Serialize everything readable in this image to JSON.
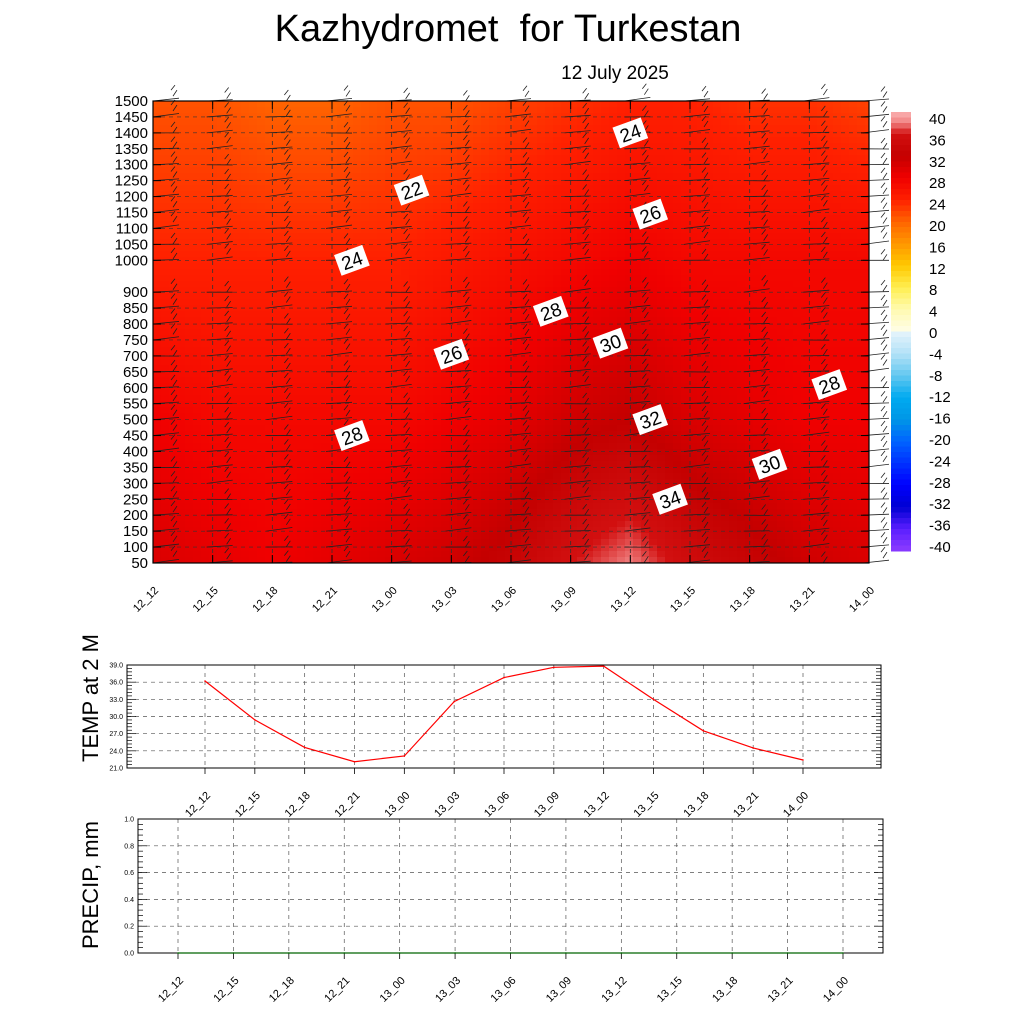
{
  "header": {
    "title": "Kazhydromet  for Turkestan",
    "subtitle": "12 July 2025"
  },
  "colors": {
    "temp_line": "#ff0000",
    "precip_line": "#006400",
    "grid": "#555555"
  },
  "colorbar": {
    "labels": [
      "40",
      "36",
      "32",
      "28",
      "24",
      "20",
      "16",
      "12",
      "8",
      "4",
      "0",
      "-4",
      "-8",
      "-12",
      "-16",
      "-20",
      "-24",
      "-28",
      "-32",
      "-36",
      "-40"
    ],
    "stops": [
      {
        "v": 40,
        "c": "#fbb3b3"
      },
      {
        "v": 38,
        "c": "#f08080"
      },
      {
        "v": 36,
        "c": "#d21010"
      },
      {
        "v": 32,
        "c": "#c40000"
      },
      {
        "v": 28,
        "c": "#f00000"
      },
      {
        "v": 24,
        "c": "#ff2000"
      },
      {
        "v": 20,
        "c": "#ff6400"
      },
      {
        "v": 16,
        "c": "#ff9600"
      },
      {
        "v": 12,
        "c": "#ffc800"
      },
      {
        "v": 8,
        "c": "#ffee50"
      },
      {
        "v": 4,
        "c": "#fffab0"
      },
      {
        "v": 0.01,
        "c": "#fffde8"
      },
      {
        "v": -0.01,
        "c": "#e6f4fc"
      },
      {
        "v": -4,
        "c": "#b4e2f7"
      },
      {
        "v": -8,
        "c": "#64c8f0"
      },
      {
        "v": -12,
        "c": "#00aaf0"
      },
      {
        "v": -16,
        "c": "#0096e6"
      },
      {
        "v": -20,
        "c": "#0064ff"
      },
      {
        "v": -24,
        "c": "#0032ff"
      },
      {
        "v": -28,
        "c": "#0000ff"
      },
      {
        "v": -32,
        "c": "#0000d2"
      },
      {
        "v": -36,
        "c": "#5a1eff"
      },
      {
        "v": -40,
        "c": "#8c3cff"
      }
    ]
  },
  "chart_data": [
    {
      "type": "heatmap",
      "title": "Kazhydromet  for Turkestan",
      "subtitle": "12 July 2025",
      "x": [
        "12_12",
        "12_15",
        "12_18",
        "12_21",
        "13_00",
        "13_03",
        "13_06",
        "13_09",
        "13_12",
        "13_15",
        "13_18",
        "13_21",
        "14_00"
      ],
      "y_ticks": [
        50,
        100,
        150,
        200,
        250,
        300,
        350,
        400,
        450,
        500,
        550,
        600,
        650,
        700,
        750,
        800,
        850,
        900,
        1000,
        1050,
        1100,
        1150,
        1200,
        1250,
        1300,
        1350,
        1400,
        1450,
        1500
      ],
      "levels": [
        50,
        500,
        1000,
        1500
      ],
      "values": [
        [
          30,
          29,
          28,
          29,
          30,
          31,
          33,
          36,
          38,
          35,
          33,
          31,
          30
        ],
        [
          28,
          27,
          27,
          27,
          27,
          28,
          29,
          31,
          32,
          30,
          29,
          28,
          28
        ],
        [
          24,
          24,
          24,
          24,
          24,
          25,
          26,
          27,
          28,
          27,
          27,
          27,
          27
        ],
        [
          21,
          21,
          20,
          20,
          21,
          21,
          22,
          23,
          24,
          24,
          23,
          23,
          22
        ]
      ],
      "contour_labels": [
        {
          "text": "24",
          "x": "13_12",
          "y": 1400
        },
        {
          "text": "22",
          "x": "13_01",
          "y": 1220
        },
        {
          "text": "26",
          "x": "13_13",
          "y": 1145
        },
        {
          "text": "24",
          "x": "12_22",
          "y": 1000
        },
        {
          "text": "28",
          "x": "13_08",
          "y": 840
        },
        {
          "text": "30",
          "x": "13_11",
          "y": 740
        },
        {
          "text": "26",
          "x": "13_03",
          "y": 705
        },
        {
          "text": "28",
          "x": "13_22",
          "y": 610
        },
        {
          "text": "32",
          "x": "13_13",
          "y": 500
        },
        {
          "text": "28",
          "x": "12_22",
          "y": 450
        },
        {
          "text": "30",
          "x": "13_19",
          "y": 360
        },
        {
          "text": "34",
          "x": "13_14",
          "y": 250
        }
      ],
      "colorbar_range": [
        -40,
        40
      ],
      "grid": true
    },
    {
      "type": "line",
      "ylabel": "TEMP at 2 M",
      "x": [
        "12_12",
        "12_15",
        "12_18",
        "12_21",
        "13_00",
        "13_03",
        "13_06",
        "13_09",
        "13_12",
        "13_15",
        "13_18",
        "13_21",
        "14_00"
      ],
      "y_ticks": [
        "21.0",
        "24.0",
        "27.0",
        "30.0",
        "33.0",
        "36.0",
        "39.0"
      ],
      "ylim": [
        21,
        39
      ],
      "series": [
        {
          "values": [
            36.2,
            29.4,
            24.6,
            22.1,
            23.1,
            32.6,
            36.8,
            38.6,
            38.8,
            33.0,
            27.5,
            24.5,
            22.4
          ]
        }
      ],
      "grid": true
    },
    {
      "type": "line",
      "ylabel": "PRECIP, mm",
      "x": [
        "12_12",
        "12_15",
        "12_18",
        "12_21",
        "13_00",
        "13_03",
        "13_06",
        "13_09",
        "13_12",
        "13_15",
        "13_18",
        "13_21",
        "14_00"
      ],
      "y_ticks": [
        "0.0",
        "0.2",
        "0.4",
        "0.6",
        "0.8",
        "1.0"
      ],
      "ylim": [
        0,
        1
      ],
      "series": [
        {
          "values": [
            0,
            0,
            0,
            0,
            0,
            0,
            0,
            0,
            0,
            0,
            0,
            0,
            0
          ]
        }
      ],
      "grid": true
    }
  ]
}
